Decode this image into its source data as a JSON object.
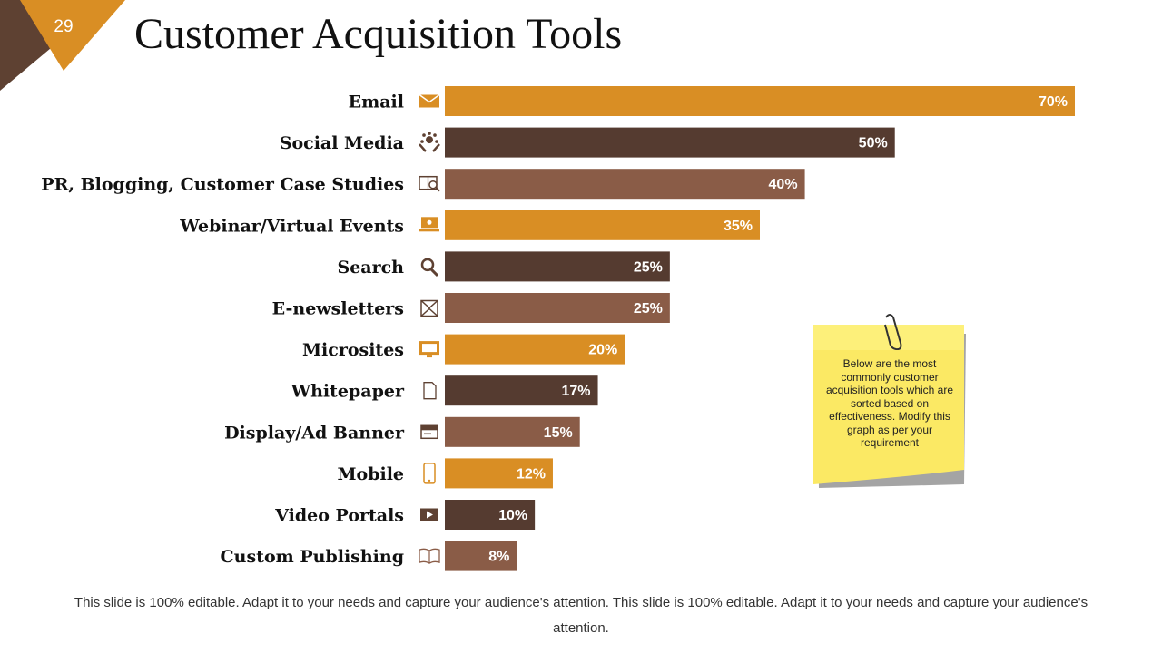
{
  "slide": {
    "number": "29",
    "title": "Customer Acquisition Tools",
    "accent_color": "#D98E24",
    "corner_dark_color": "#5E4132"
  },
  "chart_data": {
    "type": "bar",
    "orientation": "horizontal",
    "categories": [
      "Email",
      "Social Media",
      "PR, Blogging, Customer Case Studies",
      "Webinar/Virtual Events",
      "Search",
      "E-newsletters",
      "Microsites",
      "Whitepaper",
      "Display/Ad Banner",
      "Mobile",
      "Video Portals",
      "Custom Publishing"
    ],
    "values": [
      70,
      50,
      40,
      35,
      25,
      25,
      20,
      17,
      15,
      12,
      10,
      8
    ],
    "value_labels": [
      "70%",
      "50%",
      "40%",
      "35%",
      "25%",
      "25%",
      "20%",
      "17%",
      "15%",
      "12%",
      "10%",
      "8%"
    ],
    "bar_colors": [
      "#D98E24",
      "#553B30",
      "#8A5C47",
      "#D98E24",
      "#553B30",
      "#8A5C47",
      "#D98E24",
      "#553B30",
      "#8A5C47",
      "#D98E24",
      "#553B30",
      "#8A5C47"
    ],
    "icons": [
      "envelope-icon",
      "social-hands-icon",
      "book-magnifier-icon",
      "webinar-icon",
      "search-icon",
      "newsletter-envelope-icon",
      "monitor-icon",
      "document-icon",
      "ad-banner-icon",
      "mobile-phone-icon",
      "video-player-icon",
      "open-book-icon"
    ],
    "icon_color": "#5E4132",
    "xlim": [
      0,
      100
    ],
    "grid": false,
    "legend": "none",
    "title": "",
    "xlabel": "",
    "ylabel": ""
  },
  "note": {
    "text": "Below are the most commonly customer acquisition tools which are sorted based on effectiveness. Modify this graph as per your requirement"
  },
  "footer": {
    "text": "This slide is 100% editable. Adapt it to your needs and capture your audience's attention. This slide is 100% editable. Adapt it to your needs and capture your audience's attention."
  }
}
